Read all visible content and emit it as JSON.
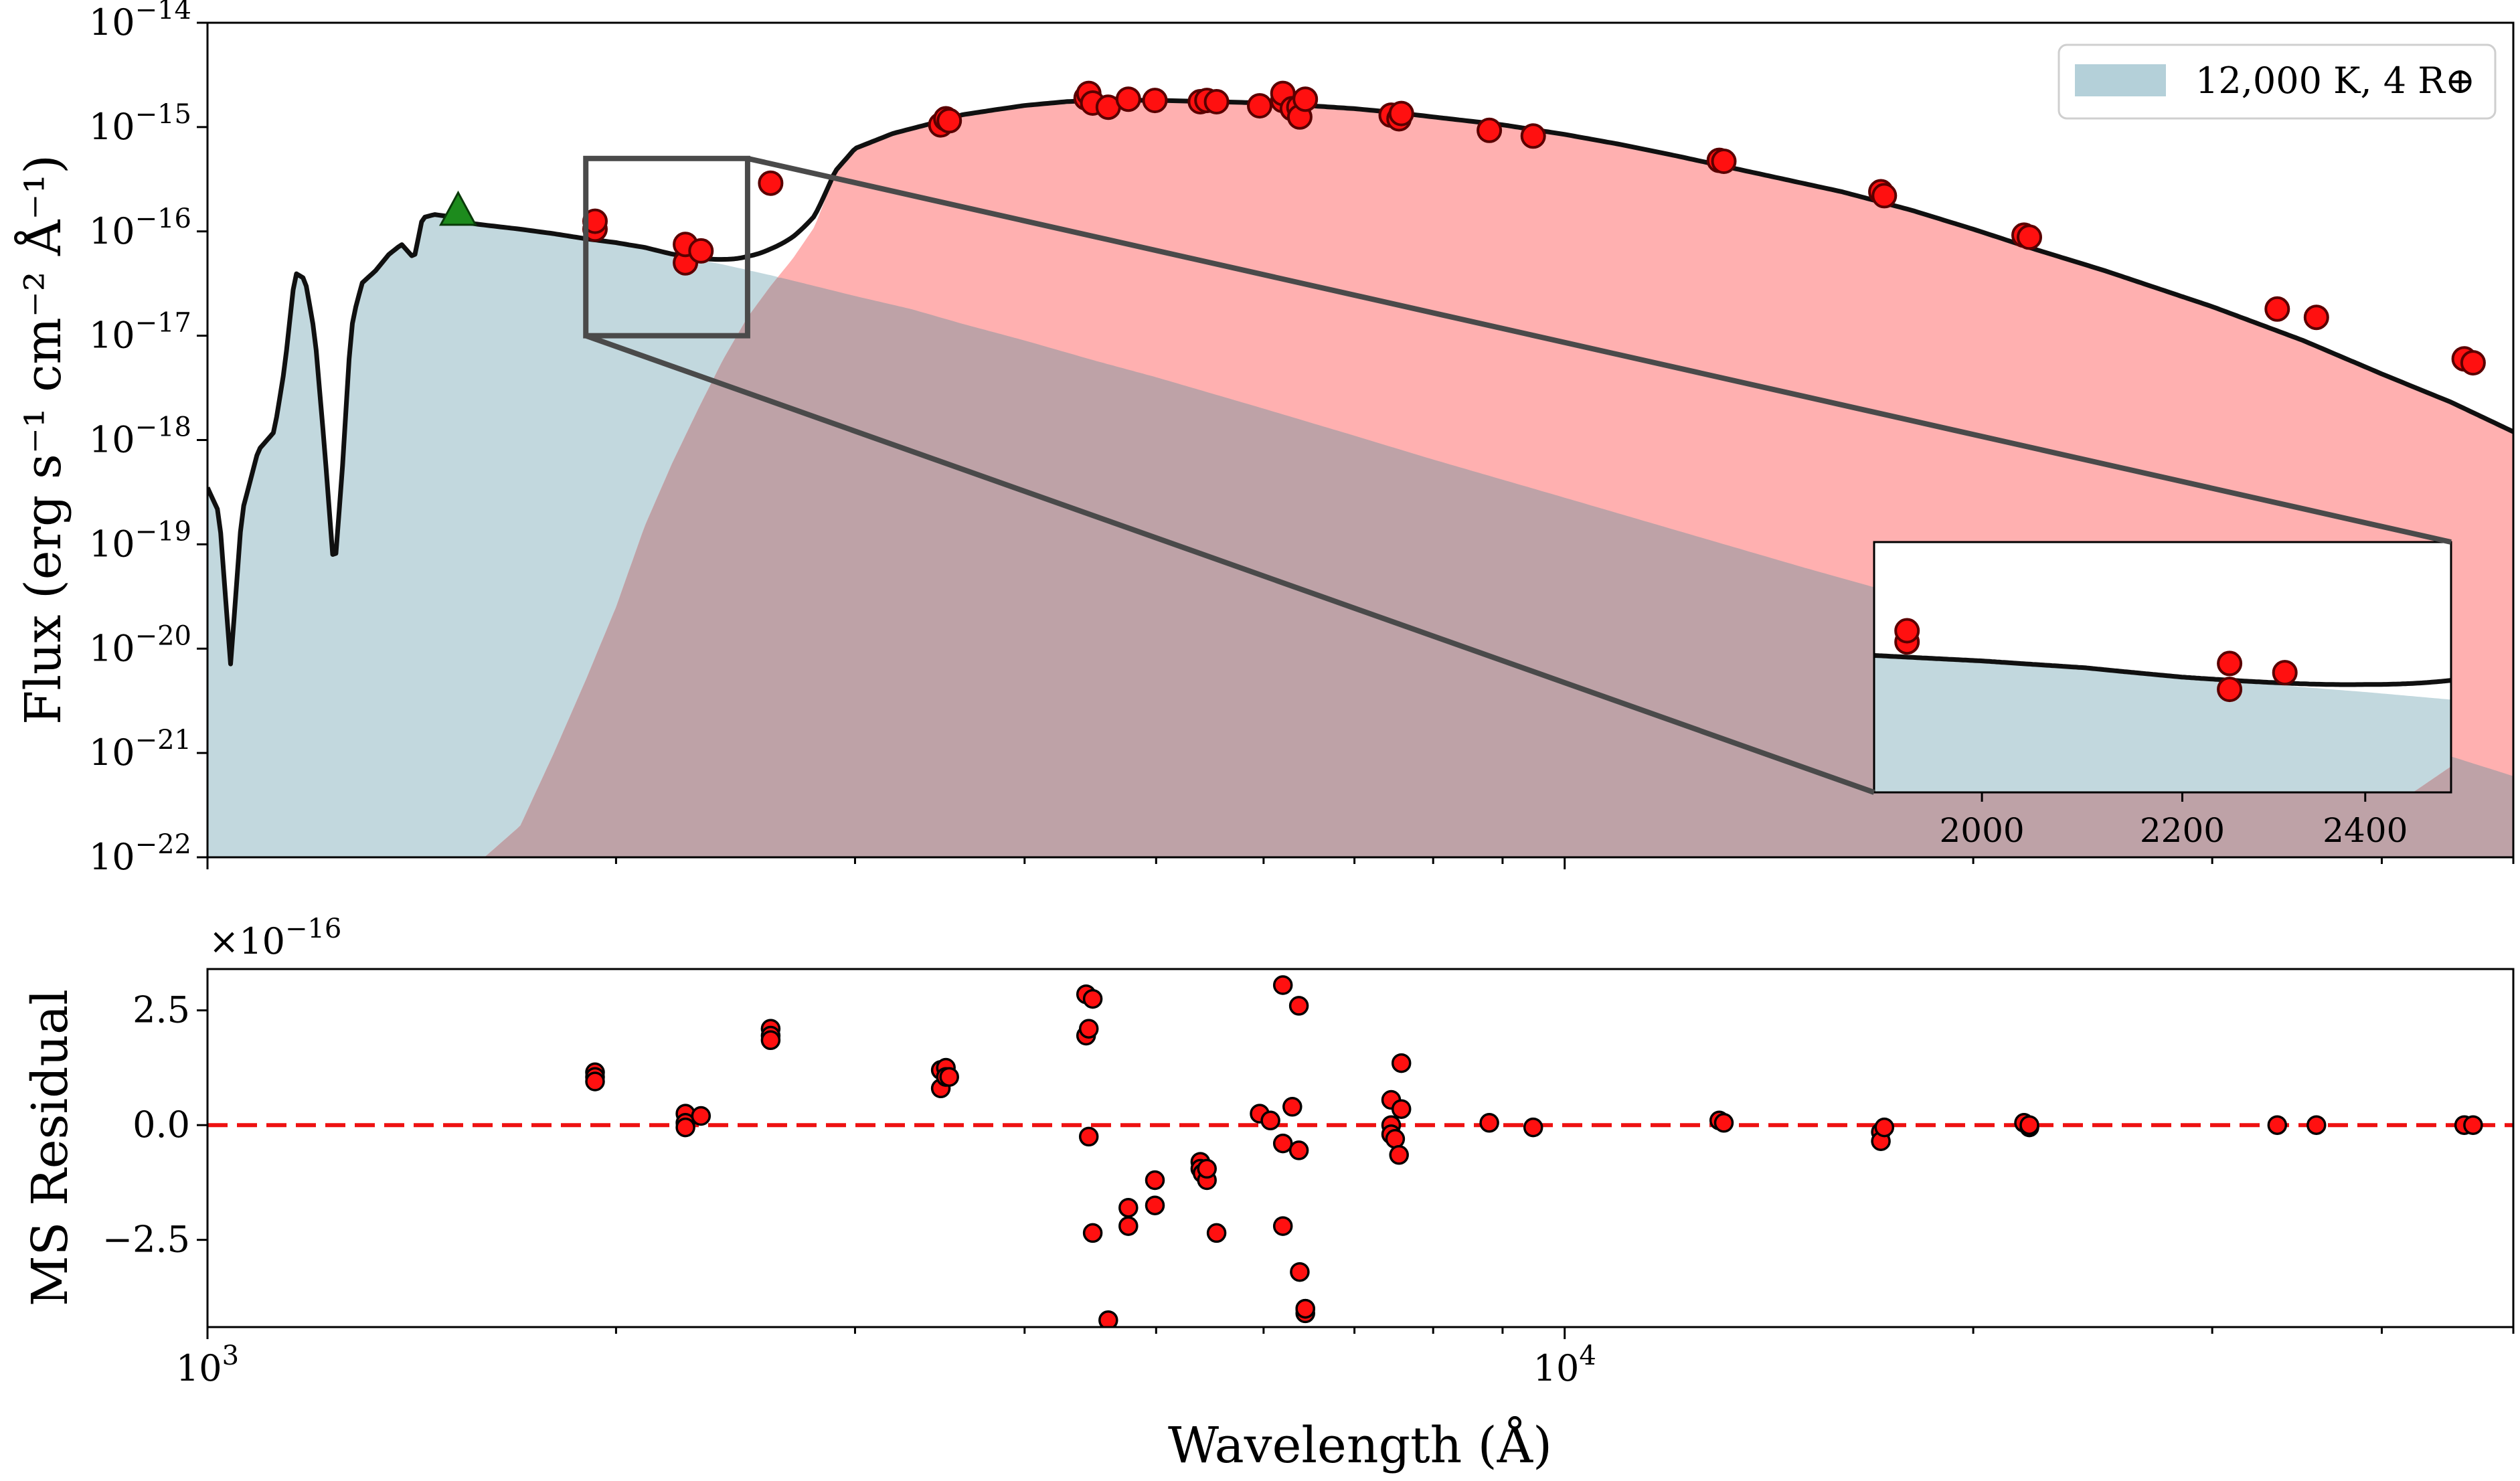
{
  "chart_data": [
    {
      "type": "area",
      "panel": "top",
      "ylabel": "Flux (erg s⁻¹ cm⁻² Å⁻¹)",
      "xscale": "log",
      "yscale": "log",
      "xlim": [
        1000,
        50000
      ],
      "ylim": [
        1e-22,
        1e-14
      ],
      "x_ticks": [
        1000,
        10000
      ],
      "x_tick_labels": [
        "",
        ""
      ],
      "y_ticks": [
        1e-22,
        1e-21,
        1e-20,
        1e-19,
        1e-18,
        1e-17,
        1e-16,
        1e-15,
        1e-14
      ],
      "y_tick_labels": [
        {
          "base": "10",
          "exp": "−22"
        },
        {
          "base": "10",
          "exp": "−21"
        },
        {
          "base": "10",
          "exp": "−20"
        },
        {
          "base": "10",
          "exp": "−19"
        },
        {
          "base": "10",
          "exp": "−18"
        },
        {
          "base": "10",
          "exp": "−17"
        },
        {
          "base": "10",
          "exp": "−16"
        },
        {
          "base": "10",
          "exp": "−15"
        },
        {
          "base": "10",
          "exp": "−14"
        }
      ],
      "legend": {
        "position": "top-right",
        "entries": [
          {
            "label": "12,000 K, 4 R⊕",
            "color": "#b4d0d9"
          }
        ]
      },
      "series": [
        {
          "kind": "white-dwarf-model",
          "color": "#c2d8de",
          "x": [
            1000,
            1020,
            1040,
            1060,
            1090,
            1120,
            1140,
            1160,
            1180,
            1200,
            1220,
            1240,
            1260,
            1270,
            1280,
            1300,
            1330,
            1360,
            1390,
            1420,
            1440,
            1470,
            1500,
            1530,
            1560,
            1600,
            1700,
            1800,
            1900,
            2000,
            2100,
            2200,
            2400,
            2600,
            2800,
            3000,
            3300,
            3600,
            4000,
            4500,
            5000,
            6000,
            7000,
            8000,
            10000,
            12000,
            15000,
            20000,
            25000,
            30000,
            40000,
            50000
          ],
          "y": [
            3.5e-19,
            2e-19,
            7e-21,
            2e-19,
            8e-19,
            1.2e-18,
            5e-18,
            4e-17,
            3.5e-17,
            1e-17,
            8e-19,
            5e-20,
            8e-19,
            5e-18,
            1.5e-17,
            3.2e-17,
            4.2e-17,
            6e-17,
            7.5e-17,
            5.5e-17,
            1.35e-16,
            1.45e-16,
            1.4e-16,
            1.3e-16,
            1.2e-16,
            1.15e-16,
            1.05e-16,
            9.5e-17,
            8.5e-17,
            7.8e-17,
            7e-17,
            6e-17,
            4.8e-17,
            3.8e-17,
            3e-17,
            2.4e-17,
            1.8e-17,
            1.3e-17,
            9e-18,
            5.8e-18,
            4e-18,
            2e-18,
            1.1e-18,
            6.5e-19,
            2.8e-19,
            1.4e-19,
            6e-20,
            2.1e-20,
            9e-21,
            4.6e-21,
            1.5e-21,
            6e-22
          ]
        },
        {
          "kind": "main-sequence-model",
          "color": "#ffb0b0",
          "x": [
            1100,
            1200,
            1300,
            1400,
            1500,
            1600,
            1700,
            1800,
            1900,
            2000,
            2100,
            2200,
            2300,
            2400,
            2500,
            2600,
            2700,
            2800,
            2900,
            3000,
            3200,
            3400,
            3600,
            3800,
            4000,
            4300,
            4600,
            5000,
            5500,
            6000,
            6500,
            7000,
            7500,
            8000,
            9000,
            10000,
            11000,
            12000,
            14000,
            16000,
            18000,
            20000,
            22000,
            25000,
            30000,
            35000,
            40000,
            45000,
            50000
          ],
          "y": [
            1e-22,
            1e-22,
            1e-22,
            1e-22,
            1e-22,
            1e-22,
            2e-22,
            1e-21,
            5e-21,
            2.5e-20,
            1.5e-19,
            6e-19,
            2e-18,
            6e-18,
            1.5e-17,
            3e-17,
            5.5e-17,
            1.1e-16,
            3.5e-16,
            6e-16,
            8.5e-16,
            1.05e-15,
            1.3e-15,
            1.45e-15,
            1.6e-15,
            1.75e-15,
            1.8e-15,
            1.8e-15,
            1.75e-15,
            1.7e-15,
            1.6e-15,
            1.5e-15,
            1.38e-15,
            1.25e-15,
            1.05e-15,
            8.5e-16,
            6.8e-16,
            5.4e-16,
            3.5e-16,
            2.4e-16,
            1.6e-16,
            1.05e-16,
            7e-17,
            4.2e-17,
            1.9e-17,
            9e-18,
            4.3e-18,
            2.3e-18,
            1.2e-18
          ]
        }
      ],
      "photometry": {
        "color": "#ff1010",
        "x": [
          1930,
          1930,
          2250,
          2250,
          2310,
          2600,
          3470,
          3500,
          3520,
          4440,
          4460,
          4490,
          4610,
          4770,
          4990,
          5390,
          5450,
          5540,
          5960,
          6200,
          6200,
          6300,
          6370,
          6380,
          6440,
          7450,
          7550,
          7580,
          8800,
          9480,
          13000,
          13100,
          17100,
          17200,
          21800,
          22000,
          33500,
          35800,
          46000,
          46700
        ],
        "y": [
          1.05e-16,
          1.25e-16,
          5e-17,
          7.5e-17,
          6.5e-17,
          2.9e-16,
          1.05e-15,
          1.2e-15,
          1.15e-15,
          1.9e-15,
          2.1e-15,
          1.7e-15,
          1.55e-15,
          1.85e-15,
          1.8e-15,
          1.75e-15,
          1.8e-15,
          1.75e-15,
          1.6e-15,
          1.8e-15,
          2.1e-15,
          1.5e-15,
          1.55e-15,
          1.25e-15,
          1.85e-15,
          1.3e-15,
          1.2e-15,
          1.35e-15,
          9.3e-16,
          8.2e-16,
          4.8e-16,
          4.7e-16,
          2.4e-16,
          2.2e-16,
          9.2e-17,
          8.8e-17,
          1.8e-17,
          1.5e-17,
          6e-18,
          5.5e-18
        ]
      },
      "uv_marker": {
        "shape": "triangle",
        "color": "#1d8b1d",
        "x": 1530,
        "y": 1.6e-16
      },
      "zoom_box": {
        "x": [
          1900,
          2500
        ],
        "y": [
          1e-17,
          5e-16
        ]
      },
      "inset": {
        "xlim": [
          1900,
          2500
        ],
        "x_ticks": [
          2000,
          2200,
          2400
        ],
        "x_tick_labels": [
          "2000",
          "2200",
          "2400"
        ],
        "ylim": [
          1e-17,
          5e-16
        ]
      }
    },
    {
      "type": "scatter",
      "panel": "bottom",
      "xlabel": "Wavelength (Å)",
      "ylabel": "MS Residual",
      "multiplier": {
        "base": "×10",
        "exp": "−16"
      },
      "xscale": "log",
      "xlim": [
        1000,
        50000
      ],
      "ylim": [
        -4.4,
        3.4
      ],
      "x_ticks": [
        1000,
        10000
      ],
      "x_tick_labels": [
        {
          "base": "10",
          "exp": "3"
        },
        {
          "base": "10",
          "exp": "4"
        }
      ],
      "y_ticks": [
        -2.5,
        0,
        2.5
      ],
      "y_tick_labels": [
        "−2.5",
        "0.0",
        "2.5"
      ],
      "reference_line": {
        "y": 0,
        "color": "#ee1111",
        "style": "dashed"
      },
      "points": {
        "color": "#ff1010",
        "x": [
          1930,
          1930,
          1930,
          2250,
          2250,
          2250,
          2310,
          2600,
          2600,
          2600,
          3470,
          3470,
          3500,
          3500,
          3520,
          4440,
          4440,
          4460,
          4460,
          4490,
          4490,
          4610,
          4770,
          4770,
          4990,
          4990,
          5390,
          5390,
          5410,
          5450,
          5450,
          5540,
          5960,
          6070,
          6200,
          6200,
          6200,
          6300,
          6370,
          6370,
          6380,
          6440,
          6440,
          6440,
          7450,
          7450,
          7450,
          7500,
          7550,
          7580,
          7580,
          8800,
          9480,
          13000,
          13100,
          17100,
          17100,
          17200,
          21800,
          22000,
          22000,
          33500,
          35800,
          46000,
          46700
        ],
        "y": [
          1.15,
          1.05,
          0.95,
          0.25,
          0.05,
          -0.05,
          0.2,
          2.1,
          1.95,
          1.85,
          1.2,
          0.8,
          1.25,
          1.05,
          1.05,
          2.85,
          1.95,
          2.1,
          -0.25,
          2.75,
          -2.35,
          -4.25,
          -1.8,
          -2.2,
          -1.2,
          -1.75,
          -0.8,
          -0.95,
          -1.05,
          -1.2,
          -0.95,
          -2.35,
          0.25,
          0.1,
          -2.2,
          3.05,
          -0.4,
          0.4,
          -0.55,
          2.6,
          -3.2,
          -4.1,
          -4.0,
          -4.0,
          0.55,
          0.0,
          -0.2,
          -0.3,
          -0.65,
          1.35,
          0.35,
          0.05,
          -0.05,
          0.1,
          0.05,
          -0.15,
          -0.35,
          -0.05,
          0.05,
          -0.05,
          0.0,
          0.0,
          0.0,
          0.0,
          0.0
        ]
      }
    }
  ],
  "colors": {
    "wd_fill": "#c2d8de",
    "ms_fill": "#ffb0b0",
    "overlap_fill": "#bea2a7",
    "model_line": "#101010",
    "point": "#ff1010",
    "point_edge": "#5a0000",
    "zoom_box": "#4a4a4a",
    "marker": "#1d8b1d",
    "residual_line": "#ee1111"
  }
}
